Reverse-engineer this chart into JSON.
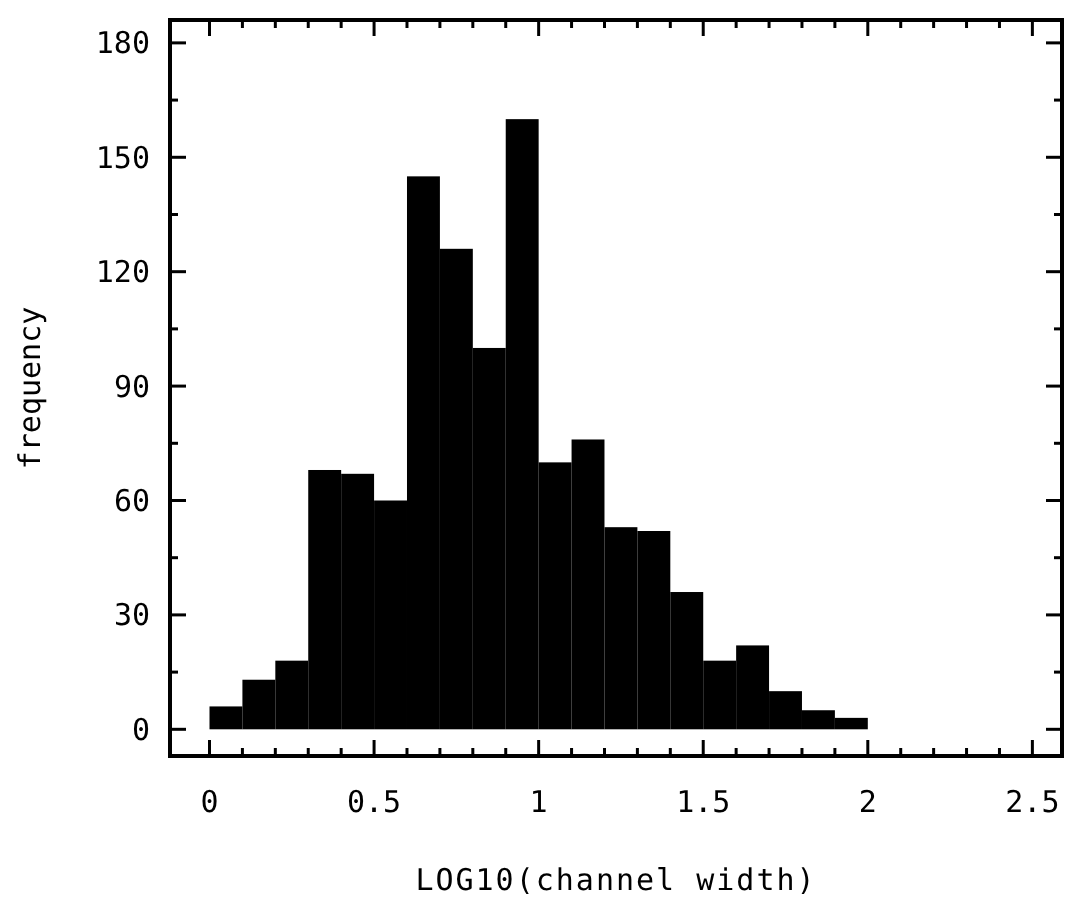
{
  "chart_data": {
    "type": "histogram",
    "xlabel": "LOG10(channel width)",
    "ylabel": "frequency",
    "bins": [
      0,
      0.1,
      0.2,
      0.3,
      0.4,
      0.5,
      0.6,
      0.7,
      0.8,
      0.9,
      1.0,
      1.1,
      1.2,
      1.3,
      1.4,
      1.5,
      1.6,
      1.7,
      1.8,
      1.9,
      2.0,
      2.1,
      2.2,
      2.3,
      2.4,
      2.5
    ],
    "values": [
      6,
      13,
      18,
      68,
      67,
      60,
      145,
      126,
      100,
      160,
      70,
      76,
      53,
      52,
      36,
      18,
      22,
      10,
      5,
      3,
      0,
      0,
      0,
      0,
      0
    ],
    "color": "#000000",
    "xlim": [
      -0.12,
      2.59
    ],
    "ylim": [
      -7,
      186
    ],
    "xticks": [
      0,
      {
        "value": 0.1,
        "label": null
      },
      {
        "value": 0.2,
        "label": null
      },
      {
        "value": 0.3,
        "label": null
      },
      {
        "value": 0.4,
        "label": null
      },
      0.5,
      {
        "value": 0.6,
        "label": null
      },
      {
        "value": 0.7,
        "label": null
      },
      {
        "value": 0.8,
        "label": null
      },
      {
        "value": 0.9,
        "label": null
      },
      1,
      {
        "value": 1.1,
        "label": null
      },
      {
        "value": 1.2,
        "label": null
      },
      {
        "value": 1.3,
        "label": null
      },
      {
        "value": 1.4,
        "label": null
      },
      1.5,
      {
        "value": 1.6,
        "label": null
      },
      {
        "value": 1.7,
        "label": null
      },
      {
        "value": 1.8,
        "label": null
      },
      {
        "value": 1.9,
        "label": null
      },
      2,
      {
        "value": 2.1,
        "label": null
      },
      {
        "value": 2.2,
        "label": null
      },
      {
        "value": 2.3,
        "label": null
      },
      {
        "value": 2.4,
        "label": null
      },
      2.5
    ],
    "yticks": [
      0,
      {
        "value": 15,
        "label": null
      },
      30,
      {
        "value": 45,
        "label": null
      },
      60,
      {
        "value": 75,
        "label": null
      },
      90,
      {
        "value": 105,
        "label": null
      },
      120,
      {
        "value": 135,
        "label": null
      },
      150,
      {
        "value": 165,
        "label": null
      },
      180
    ],
    "grid": false
  }
}
